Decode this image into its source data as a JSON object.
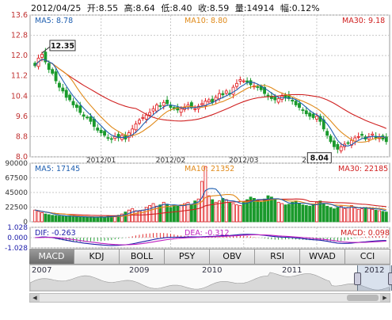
{
  "header": {
    "date": "2012/04/25",
    "open": "开:8.55",
    "high": "高:8.64",
    "low": "低:8.40",
    "close": "收:8.59",
    "volume": "量:14914",
    "change": "幅:0.12%"
  },
  "colors": {
    "up": "#e0181b",
    "down": "#1a9a2c",
    "ma5": "#1f5fb0",
    "ma10": "#e08a1a",
    "ma30": "#d02020",
    "grid": "#c8c8c8",
    "dif": "#1a1aa8",
    "dea": "#c020c0"
  },
  "chart_data": [
    {
      "type": "candlestick",
      "panel": "price",
      "legend": {
        "ma5": "MA5: 8.78",
        "ma10": "MA10: 8.80",
        "ma30": "MA30: 9.18"
      },
      "yticks": [
        "13.6",
        "12.8",
        "12.0",
        "11.2",
        "10.4",
        "9.6",
        "8.8",
        "8.0"
      ],
      "ylim": [
        8.0,
        13.6
      ],
      "xticks": [
        "2012/01",
        "2012/02",
        "2012/03",
        "2012/04"
      ],
      "annotations": {
        "high_label": "12.35",
        "low_label": "8.04"
      },
      "close": [
        11.6,
        11.9,
        12.05,
        11.75,
        11.45,
        11.3,
        11.0,
        10.75,
        10.6,
        10.35,
        10.25,
        10.05,
        9.95,
        9.75,
        9.6,
        9.55,
        9.4,
        9.2,
        9.05,
        8.95,
        8.85,
        8.75,
        8.7,
        8.8,
        8.75,
        8.85,
        8.7,
        8.95,
        9.1,
        9.3,
        9.45,
        9.55,
        9.65,
        9.75,
        9.9,
        10.05,
        10.0,
        10.15,
        10.1,
        9.95,
        9.9,
        9.85,
        9.9,
        9.95,
        10.05,
        9.95,
        9.9,
        10.0,
        10.1,
        10.2,
        10.25,
        10.15,
        10.35,
        10.5,
        10.45,
        10.6,
        10.5,
        10.75,
        10.9,
        11.05,
        11.0,
        10.95,
        10.85,
        10.8,
        10.75,
        10.65,
        10.5,
        10.4,
        10.3,
        10.25,
        10.3,
        10.4,
        10.35,
        10.3,
        10.2,
        10.05,
        9.95,
        9.85,
        9.7,
        9.6,
        9.55,
        9.6,
        9.4,
        9.1,
        8.85,
        8.6,
        8.4,
        8.3,
        8.4,
        8.5,
        8.55,
        8.65,
        8.75,
        8.8,
        8.85,
        8.7,
        8.8,
        8.9,
        8.75,
        8.8,
        8.7,
        8.6
      ],
      "volume": [
        18000,
        16000,
        14000,
        12000,
        11000,
        10000,
        9500,
        9000,
        8500,
        8000,
        9000,
        8000,
        7500,
        7000,
        7500,
        8000,
        7000,
        6500,
        7000,
        8000,
        7500,
        9000,
        8500,
        9000,
        10000,
        12000,
        15000,
        18000,
        20000,
        17000,
        16000,
        18000,
        22000,
        25000,
        28000,
        24000,
        26000,
        30000,
        27000,
        22000,
        25000,
        24000,
        26000,
        28000,
        30000,
        26000,
        32000,
        35000,
        62000,
        85000,
        40000,
        34000,
        30000,
        32000,
        36000,
        34000,
        30000,
        28000,
        26000,
        25000,
        30000,
        34000,
        38000,
        36000,
        33000,
        30000,
        35000,
        40000,
        38000,
        34000,
        30000,
        28000,
        26000,
        27000,
        30000,
        32000,
        28000,
        26000,
        25000,
        24000,
        27000,
        30000,
        32000,
        28000,
        24000,
        22000,
        20000,
        22000,
        24000,
        20000,
        22000,
        25000,
        21000,
        19000,
        20000,
        22000,
        21000,
        19000,
        18000,
        17000,
        16000,
        15000
      ]
    },
    {
      "type": "bar",
      "panel": "volume",
      "legend": {
        "ma5": "MA5: 17145",
        "ma10": "MA10: 21352",
        "ma30": "MA30: 22185"
      },
      "yticks": [
        "90000",
        "67500",
        "45000",
        "22500",
        "0"
      ],
      "ylim": [
        0,
        90000
      ]
    },
    {
      "type": "line",
      "panel": "macd",
      "legend": {
        "dif": "DIF: -0.263",
        "dea": "DEA: -0.312",
        "macd": "MACD: 0.098"
      },
      "yticks": [
        "1.028",
        "0.000",
        "-1.028"
      ],
      "ylim": [
        -1.028,
        1.028
      ]
    }
  ],
  "tabs": [
    "MACD",
    "KDJ",
    "BOLL",
    "PSY",
    "OBV",
    "RSI",
    "WVAD",
    "CCI"
  ],
  "navigator": {
    "years": [
      "2007",
      "2009",
      "2010",
      "2011",
      "2012"
    ]
  }
}
